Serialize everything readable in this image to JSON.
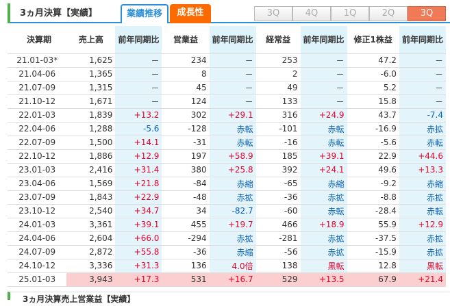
{
  "header": {
    "title": "3ヵ月決算【実績】",
    "tab_performance": "業績推移",
    "tab_growth": "成長性",
    "quarter_buttons": [
      "3Q",
      "4Q",
      "1Q",
      "2Q",
      "3Q"
    ],
    "active_quarter_index": 4
  },
  "table": {
    "columns": [
      "決算期",
      "売上高",
      "前年同期比",
      "営業益",
      "前年同期比",
      "経常益",
      "前年同期比",
      "修正1株益",
      "前年同期比"
    ],
    "rows": [
      {
        "period": "21.01-03*",
        "sales": "1,625",
        "sales_yoy": "－",
        "op": "234",
        "op_yoy": "－",
        "ord": "253",
        "ord_yoy": "－",
        "eps": "47.2",
        "eps_yoy": "－"
      },
      {
        "period": "21.04-06",
        "sales": "1,365",
        "sales_yoy": "－",
        "op": "8",
        "op_yoy": "－",
        "ord": "2",
        "ord_yoy": "－",
        "eps": "-6.0",
        "eps_yoy": "－"
      },
      {
        "period": "21.07-09",
        "sales": "1,315",
        "sales_yoy": "－",
        "op": "45",
        "op_yoy": "－",
        "ord": "49",
        "ord_yoy": "－",
        "eps": "5.2",
        "eps_yoy": "－"
      },
      {
        "period": "21.10-12",
        "sales": "1,671",
        "sales_yoy": "－",
        "op": "124",
        "op_yoy": "－",
        "ord": "133",
        "ord_yoy": "－",
        "eps": "15.8",
        "eps_yoy": "－"
      },
      {
        "period": "22.01-03",
        "sales": "1,839",
        "sales_yoy": "+13.2",
        "op": "302",
        "op_yoy": "+29.1",
        "ord": "316",
        "ord_yoy": "+24.9",
        "eps": "43.7",
        "eps_yoy": "-7.4"
      },
      {
        "period": "22.04-06",
        "sales": "1,288",
        "sales_yoy": "-5.6",
        "op": "-128",
        "op_yoy": "赤転",
        "ord": "-101",
        "ord_yoy": "赤転",
        "eps": "-16.9",
        "eps_yoy": "赤拡"
      },
      {
        "period": "22.07-09",
        "sales": "1,500",
        "sales_yoy": "+14.1",
        "op": "-31",
        "op_yoy": "赤転",
        "ord": "-16",
        "ord_yoy": "赤転",
        "eps": "-5.6",
        "eps_yoy": "赤転"
      },
      {
        "period": "22.10-12",
        "sales": "1,886",
        "sales_yoy": "+12.9",
        "op": "197",
        "op_yoy": "+58.9",
        "ord": "185",
        "ord_yoy": "+39.1",
        "eps": "22.9",
        "eps_yoy": "+44.6"
      },
      {
        "period": "23.01-03",
        "sales": "2,416",
        "sales_yoy": "+31.4",
        "op": "380",
        "op_yoy": "+25.8",
        "ord": "392",
        "ord_yoy": "+24.1",
        "eps": "49.6",
        "eps_yoy": "+13.3"
      },
      {
        "period": "23.04-06",
        "sales": "1,569",
        "sales_yoy": "+21.8",
        "op": "-84",
        "op_yoy": "赤縮",
        "ord": "-65",
        "ord_yoy": "赤縮",
        "eps": "-9.2",
        "eps_yoy": "赤縮"
      },
      {
        "period": "23.07-09",
        "sales": "1,843",
        "sales_yoy": "+22.9",
        "op": "-48",
        "op_yoy": "赤拡",
        "ord": "-36",
        "ord_yoy": "赤拡",
        "eps": "-8.8",
        "eps_yoy": "赤拡"
      },
      {
        "period": "23.10-12",
        "sales": "2,540",
        "sales_yoy": "+34.7",
        "op": "34",
        "op_yoy": "-82.7",
        "ord": "-60",
        "ord_yoy": "赤転",
        "eps": "-28.4",
        "eps_yoy": "赤転"
      },
      {
        "period": "24.01-03",
        "sales": "3,361",
        "sales_yoy": "+39.1",
        "op": "455",
        "op_yoy": "+19.7",
        "ord": "466",
        "ord_yoy": "+18.9",
        "eps": "55.9",
        "eps_yoy": "+12.9"
      },
      {
        "period": "24.04-06",
        "sales": "2,604",
        "sales_yoy": "+66.0",
        "op": "-294",
        "op_yoy": "赤拡",
        "ord": "-281",
        "ord_yoy": "赤拡",
        "eps": "-37.5",
        "eps_yoy": "赤拡"
      },
      {
        "period": "24.07-09",
        "sales": "2,872",
        "sales_yoy": "+55.8",
        "op": "-36",
        "op_yoy": "赤縮",
        "ord": "-56",
        "ord_yoy": "赤拡",
        "eps": "-15.9",
        "eps_yoy": "赤拡"
      },
      {
        "period": "24.10-12",
        "sales": "3,336",
        "sales_yoy": "+31.3",
        "op": "136",
        "op_yoy": "4.0倍",
        "ord": "138",
        "ord_yoy": "黒転",
        "eps": "12.8",
        "eps_yoy": "黒転"
      },
      {
        "period": "25.01-03",
        "sales": "3,943",
        "sales_yoy": "+17.3",
        "op": "531",
        "op_yoy": "+16.7",
        "ord": "529",
        "ord_yoy": "+13.5",
        "eps": "67.9",
        "eps_yoy": "+21.4"
      }
    ]
  },
  "footer": {
    "title": "3ヵ月決算売上営業益【実績】"
  },
  "colors": {
    "accent_blue": "#2c8fd9",
    "accent_orange": "#ff6a00",
    "positive": "#e8002a",
    "negative": "#0a5eb8",
    "compare_bg": "#e3f5fb",
    "highlight_bg": "#fbcfd0"
  }
}
